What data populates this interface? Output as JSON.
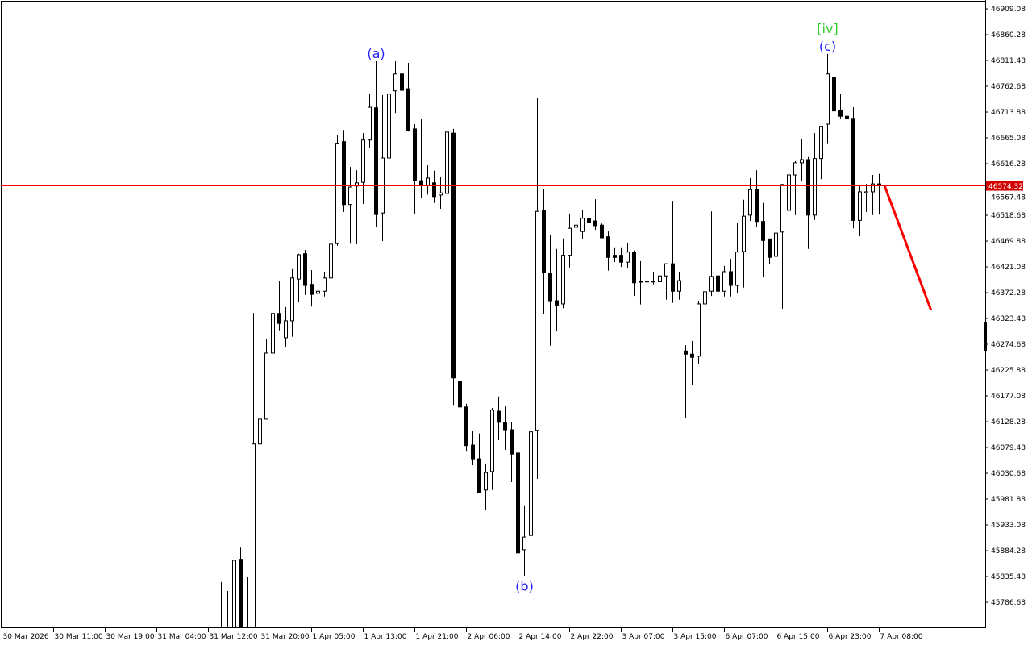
{
  "chart_data": {
    "type": "candlestick",
    "title": "",
    "ylim": [
      45739.4,
      46925.9
    ],
    "grid": false,
    "y_ticks": [
      "46909.08",
      "46860.28",
      "46811.48",
      "46762.68",
      "46713.88",
      "46665.08",
      "46616.28",
      "46567.48",
      "46518.68",
      "46469.88",
      "46421.08",
      "46372.28",
      "46323.48",
      "46274.68",
      "46225.88",
      "46177.08",
      "46128.28",
      "46079.48",
      "46030.68",
      "45981.88",
      "45933.08",
      "45884.28",
      "45835.48",
      "45786.68"
    ],
    "x_ticks": [
      "30 Mar 2026",
      "30 Mar 11:00",
      "30 Mar 19:00",
      "31 Mar 04:00",
      "31 Mar 12:00",
      "31 Mar 20:00",
      "1 Apr 05:00",
      "1 Apr 13:00",
      "1 Apr 21:00",
      "2 Apr 06:00",
      "2 Apr 14:00",
      "2 Apr 22:00",
      "3 Apr 07:00",
      "3 Apr 15:00",
      "6 Apr 07:00",
      "6 Apr 15:00",
      "6 Apr 23:00",
      "7 Apr 08:00"
    ],
    "candle_columns": [
      "open",
      "high",
      "low",
      "close"
    ],
    "candles": [
      [
        45715,
        45825,
        45700,
        45710
      ],
      [
        45720,
        45808,
        45700,
        45712
      ],
      [
        45710,
        45866,
        45700,
        45866
      ],
      [
        45868,
        45890,
        45700,
        45710
      ],
      [
        45720,
        45834,
        45700,
        45730
      ],
      [
        45710,
        46334,
        45700,
        46086
      ],
      [
        46086,
        46238,
        46058,
        46133
      ],
      [
        46133,
        46285,
        46133,
        46258
      ],
      [
        46258,
        46395,
        46192,
        46333
      ],
      [
        46333,
        46395,
        46301,
        46314
      ],
      [
        46287,
        46345,
        46270,
        46319
      ],
      [
        46319,
        46417,
        46289,
        46400
      ],
      [
        46398,
        46446,
        46354,
        46444
      ],
      [
        46446,
        46453,
        46368,
        46386
      ],
      [
        46388,
        46415,
        46346,
        46369
      ],
      [
        46371,
        46394,
        46365,
        46375
      ],
      [
        46375,
        46412,
        46365,
        46400
      ],
      [
        46400,
        46485,
        46397,
        46464
      ],
      [
        46465,
        46671,
        46461,
        46655
      ],
      [
        46658,
        46680,
        46525,
        46539
      ],
      [
        46539,
        46610,
        46465,
        46572
      ],
      [
        46574,
        46604,
        46464,
        46580
      ],
      [
        46581,
        46674,
        46540,
        46661
      ],
      [
        46661,
        46749,
        46647,
        46723
      ],
      [
        46722,
        46810,
        46497,
        46520
      ],
      [
        46523,
        46746,
        46470,
        46627
      ],
      [
        46627,
        46789,
        46502,
        46748
      ],
      [
        46754,
        46810,
        46712,
        46786
      ],
      [
        46786,
        46805,
        46687,
        46755
      ],
      [
        46758,
        46807,
        46677,
        46679
      ],
      [
        46682,
        46691,
        46522,
        46584
      ],
      [
        46584,
        46700,
        46551,
        46575
      ],
      [
        46575,
        46613,
        46558,
        46589
      ],
      [
        46580,
        46603,
        46542,
        46554
      ],
      [
        46557,
        46592,
        46531,
        46561
      ],
      [
        46560,
        46683,
        46513,
        46676
      ],
      [
        46674,
        46682,
        46160,
        46211
      ],
      [
        46205,
        46235,
        46101,
        46156
      ],
      [
        46156,
        46162,
        46073,
        46083
      ],
      [
        46084,
        46110,
        46046,
        46058
      ],
      [
        46058,
        46106,
        45993,
        45994
      ],
      [
        45999,
        46049,
        45961,
        46032
      ],
      [
        46034,
        46154,
        45999,
        46150
      ],
      [
        46148,
        46176,
        46093,
        46127
      ],
      [
        46127,
        46157,
        46075,
        46113
      ],
      [
        46113,
        46127,
        46014,
        46067
      ],
      [
        46069,
        46081,
        45880,
        45880
      ],
      [
        45886,
        45970,
        45836,
        45910
      ],
      [
        45913,
        46122,
        45872,
        46109
      ],
      [
        46112,
        46740,
        46020,
        46526
      ],
      [
        46528,
        46568,
        46332,
        46411
      ],
      [
        46409,
        46482,
        46272,
        46357
      ],
      [
        46357,
        46455,
        46299,
        46348
      ],
      [
        46351,
        46475,
        46343,
        46443
      ],
      [
        46443,
        46522,
        46420,
        46494
      ],
      [
        46496,
        46531,
        46459,
        46500
      ],
      [
        46488,
        46528,
        46473,
        46513
      ],
      [
        46513,
        46520,
        46497,
        46505
      ],
      [
        46508,
        46549,
        46491,
        46499
      ],
      [
        46500,
        46503,
        46476,
        46476
      ],
      [
        46478,
        46488,
        46414,
        46439
      ],
      [
        46443,
        46458,
        46430,
        46439
      ],
      [
        46443,
        46458,
        46421,
        46430
      ],
      [
        46430,
        46467,
        46418,
        46449
      ],
      [
        46449,
        46452,
        46366,
        46391
      ],
      [
        46394,
        46432,
        46350,
        46392
      ],
      [
        46393,
        46411,
        46374,
        46394
      ],
      [
        46393,
        46412,
        46388,
        46394
      ],
      [
        46393,
        46407,
        46368,
        46404
      ],
      [
        46404,
        46427,
        46359,
        46427
      ],
      [
        46427,
        46546,
        46353,
        46375
      ],
      [
        46375,
        46412,
        46359,
        46395
      ],
      [
        46262,
        46273,
        46136,
        46256
      ],
      [
        46256,
        46281,
        46198,
        46250
      ],
      [
        46252,
        46357,
        46238,
        46351
      ],
      [
        46351,
        46421,
        46345,
        46374
      ],
      [
        46375,
        46526,
        46366,
        46403
      ],
      [
        46404,
        46405,
        46266,
        46375
      ],
      [
        46375,
        46423,
        46365,
        46412
      ],
      [
        46412,
        46436,
        46365,
        46386
      ],
      [
        46386,
        46505,
        46371,
        46449
      ],
      [
        46450,
        46548,
        46382,
        46517
      ],
      [
        46519,
        46589,
        46508,
        46567
      ],
      [
        46567,
        46604,
        46496,
        46507
      ],
      [
        46507,
        46542,
        46401,
        46471
      ],
      [
        46474,
        46474,
        46426,
        46439
      ],
      [
        46441,
        46527,
        46420,
        46485
      ],
      [
        46487,
        46577,
        46342,
        46577
      ],
      [
        46528,
        46700,
        46516,
        46595
      ],
      [
        46595,
        46621,
        46519,
        46618
      ],
      [
        46618,
        46662,
        46583,
        46624
      ],
      [
        46624,
        46629,
        46455,
        46519
      ],
      [
        46519,
        46674,
        46510,
        46626
      ],
      [
        46626,
        46687,
        46587,
        46687
      ],
      [
        46691,
        46824,
        46655,
        46786
      ],
      [
        46780,
        46813,
        46715,
        46716
      ],
      [
        46717,
        46748,
        46702,
        46706
      ],
      [
        46706,
        46796,
        46688,
        46702
      ],
      [
        46702,
        46723,
        46494,
        46509
      ],
      [
        46509,
        46574,
        46479,
        46563
      ],
      [
        46561,
        46578,
        46525,
        46563
      ],
      [
        46563,
        46595,
        46519,
        46578
      ],
      [
        46578,
        46597,
        46520,
        46574.32
      ]
    ],
    "current_price": {
      "value": 46574.32,
      "label": "46574.32",
      "color": "#ff0000",
      "label_bg": "#d40000"
    },
    "wave_labels": [
      {
        "text": "(a)",
        "at_candle": 24,
        "anchor": "high",
        "color": "#1e1eff"
      },
      {
        "text": "(b)",
        "at_candle": 47,
        "anchor": "low",
        "color": "#1e1eff"
      },
      {
        "text": "(c)",
        "at_candle": 94,
        "anchor": "high",
        "color": "#1e1eff"
      },
      {
        "text": "[iv]",
        "at_candle": 94,
        "anchor": "high2",
        "color": "#32cd32"
      }
    ],
    "forecast": {
      "from": [
        102.9,
        46574.32
      ],
      "to": [
        110.1,
        46339
      ],
      "color": "#ff0000"
    },
    "colors": {
      "bull_body": "#ffffff",
      "bear_body": "#000000",
      "outline": "#000000",
      "background": "#ffffff"
    }
  }
}
